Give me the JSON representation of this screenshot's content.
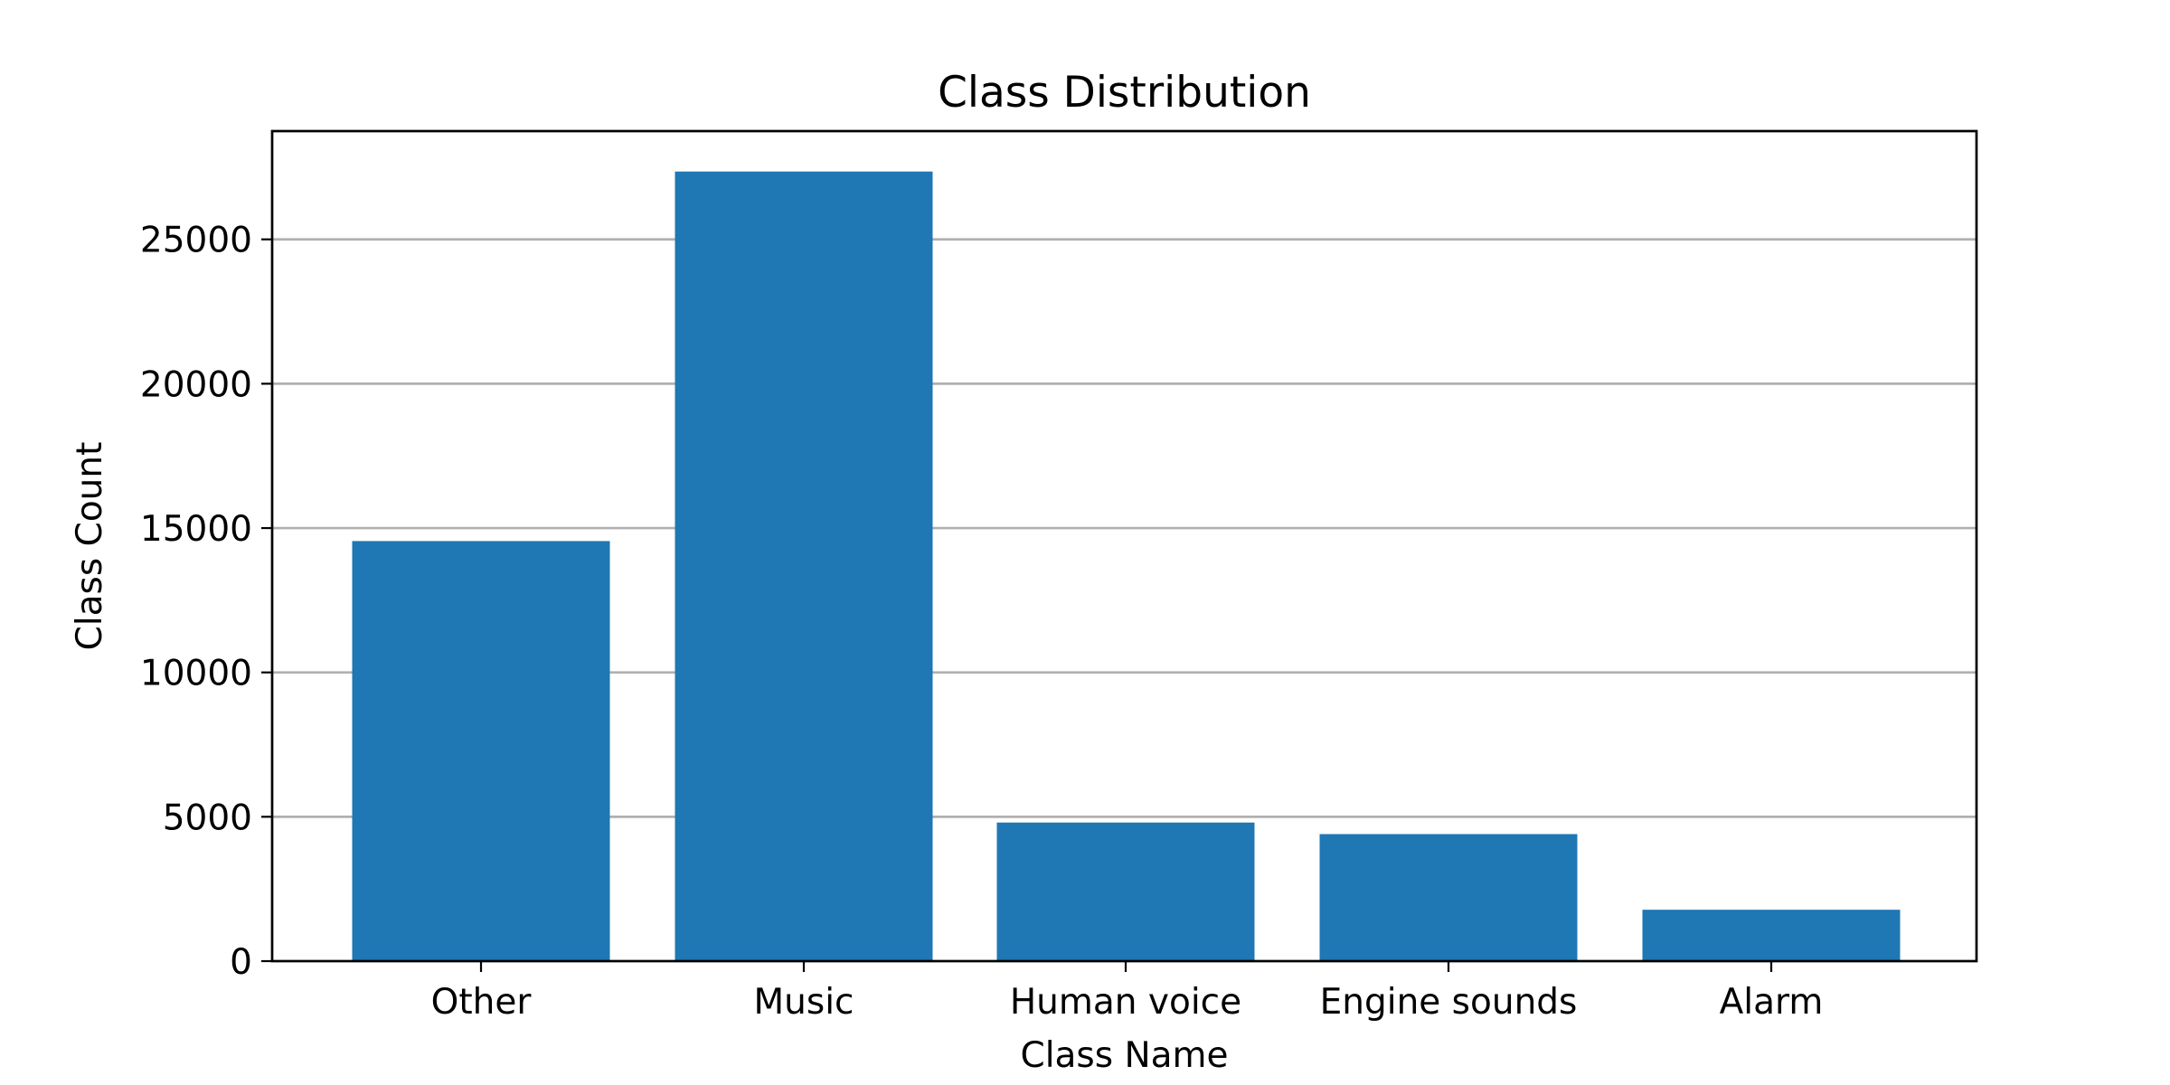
{
  "chart_data": {
    "type": "bar",
    "title": "Class Distribution",
    "xlabel": "Class Name",
    "ylabel": "Class Count",
    "categories": [
      "Other",
      "Music",
      "Human voice",
      "Engine sounds",
      "Alarm"
    ],
    "values": [
      14550,
      27350,
      4800,
      4400,
      1780
    ],
    "ylim": [
      0,
      28750
    ],
    "yticks": [
      0,
      5000,
      10000,
      15000,
      20000,
      25000
    ],
    "grid": "horizontal",
    "legend": "none",
    "bar_color": "#1f77b4"
  }
}
